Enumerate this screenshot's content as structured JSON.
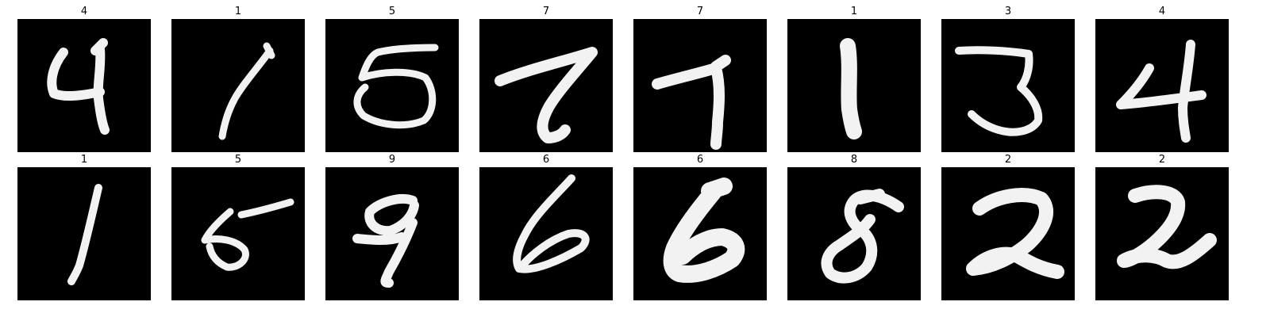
{
  "figure": {
    "rows": [
      [
        {
          "label": "4",
          "icon": "handwritten-digit-4"
        },
        {
          "label": "1",
          "icon": "handwritten-digit-1"
        },
        {
          "label": "5",
          "icon": "handwritten-digit-5"
        },
        {
          "label": "7",
          "icon": "handwritten-digit-7"
        },
        {
          "label": "7",
          "icon": "handwritten-digit-7"
        },
        {
          "label": "1",
          "icon": "handwritten-digit-1"
        },
        {
          "label": "3",
          "icon": "handwritten-digit-3"
        },
        {
          "label": "4",
          "icon": "handwritten-digit-4"
        }
      ],
      [
        {
          "label": "1",
          "icon": "handwritten-digit-1"
        },
        {
          "label": "5",
          "icon": "handwritten-digit-5"
        },
        {
          "label": "9",
          "icon": "handwritten-digit-9"
        },
        {
          "label": "6",
          "icon": "handwritten-digit-6"
        },
        {
          "label": "6",
          "icon": "handwritten-digit-6"
        },
        {
          "label": "8",
          "icon": "handwritten-digit-8"
        },
        {
          "label": "2",
          "icon": "handwritten-digit-2"
        },
        {
          "label": "2",
          "icon": "handwritten-digit-2"
        }
      ]
    ]
  }
}
